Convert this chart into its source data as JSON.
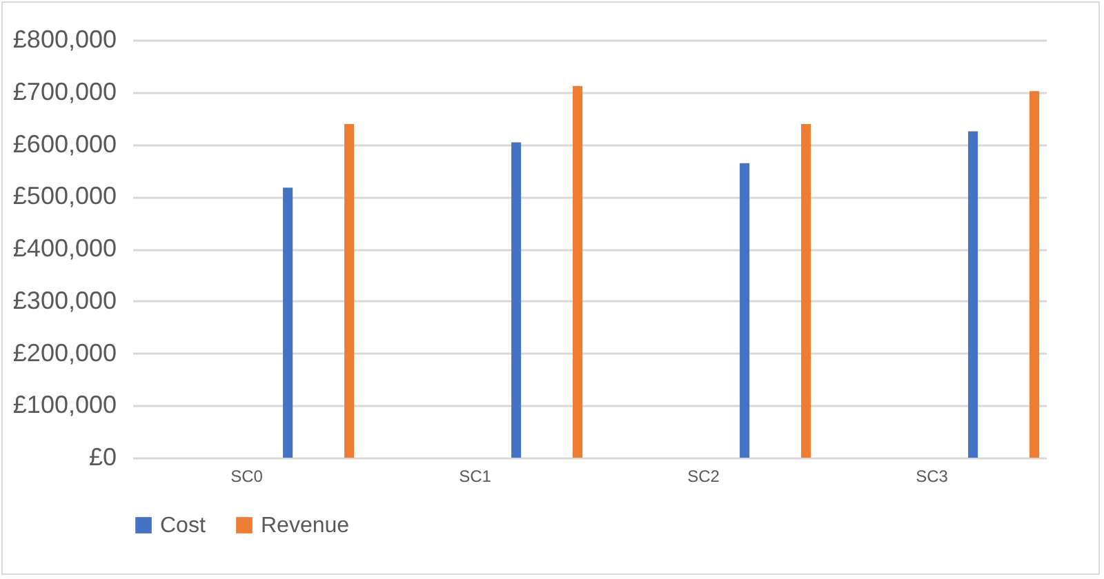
{
  "chart_data": {
    "type": "bar",
    "categories": [
      "SC0",
      "SC1",
      "SC2",
      "SC3"
    ],
    "series": [
      {
        "name": "Cost",
        "color": "#4472c4",
        "values": [
          517000,
          604000,
          564000,
          625000
        ]
      },
      {
        "name": "Revenue",
        "color": "#ed7d31",
        "values": [
          639000,
          712000,
          639000,
          702000
        ]
      }
    ],
    "ylim": [
      0,
      800000
    ],
    "yticks": [
      {
        "value": 0,
        "label": "£0"
      },
      {
        "value": 100000,
        "label": "£100,000"
      },
      {
        "value": 200000,
        "label": "£200,000"
      },
      {
        "value": 300000,
        "label": "£300,000"
      },
      {
        "value": 400000,
        "label": "£400,000"
      },
      {
        "value": 500000,
        "label": "£500,000"
      },
      {
        "value": 600000,
        "label": "£600,000"
      },
      {
        "value": 700000,
        "label": "£700,000"
      },
      {
        "value": 800000,
        "label": "£800,000"
      }
    ],
    "grid": "y",
    "legend": "bottom"
  }
}
